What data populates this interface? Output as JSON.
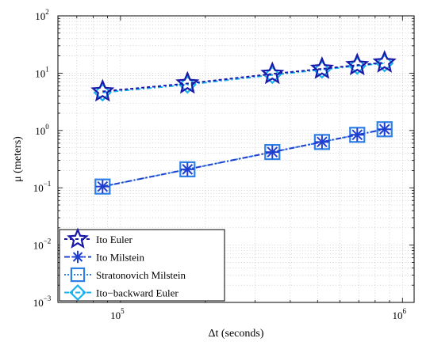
{
  "chart_data": {
    "type": "line",
    "xlabel": "Δt (seconds)",
    "ylabel": "μ (meters)",
    "xscale": "log",
    "yscale": "log",
    "xlim": [
      60000,
      1100000
    ],
    "ylim": [
      0.001,
      100
    ],
    "grid": true,
    "legend_position": "bottom-left",
    "x_ticks": [
      {
        "value": 100000,
        "base": "10",
        "exp": "5"
      },
      {
        "value": 1000000,
        "base": "10",
        "exp": "6"
      }
    ],
    "y_ticks": [
      {
        "value": 0.001,
        "base": "10",
        "exp": "−3"
      },
      {
        "value": 0.01,
        "base": "10",
        "exp": "−2"
      },
      {
        "value": 0.1,
        "base": "10",
        "exp": "−1"
      },
      {
        "value": 1,
        "base": "10",
        "exp": "0"
      },
      {
        "value": 10,
        "base": "10",
        "exp": "1"
      },
      {
        "value": 100,
        "base": "10",
        "exp": "2"
      }
    ],
    "x": [
      86400,
      172800,
      345600,
      518400,
      691200,
      864000
    ],
    "series": [
      {
        "name": "Ito Euler",
        "values": [
          4.8,
          6.6,
          9.7,
          11.9,
          13.8,
          15.3
        ],
        "color": "#1a1aaa",
        "marker": "star",
        "dash": "4,3"
      },
      {
        "name": "Ito Milstein",
        "values": [
          0.105,
          0.21,
          0.42,
          0.63,
          0.84,
          1.05
        ],
        "color": "#1f3fd1",
        "marker": "asterisk",
        "dash": "7,3,2,3"
      },
      {
        "name": "Stratonovich Milstein",
        "values": [
          0.105,
          0.21,
          0.42,
          0.63,
          0.84,
          1.05
        ],
        "color": "#2e7fe6",
        "marker": "square",
        "dash": "2,2"
      },
      {
        "name": "Ito−backward Euler",
        "values": [
          4.6,
          6.3,
          9.3,
          11.5,
          13.4,
          14.9
        ],
        "color": "#19b0ee",
        "marker": "diamond",
        "dash": "6,3,2,3"
      }
    ]
  }
}
